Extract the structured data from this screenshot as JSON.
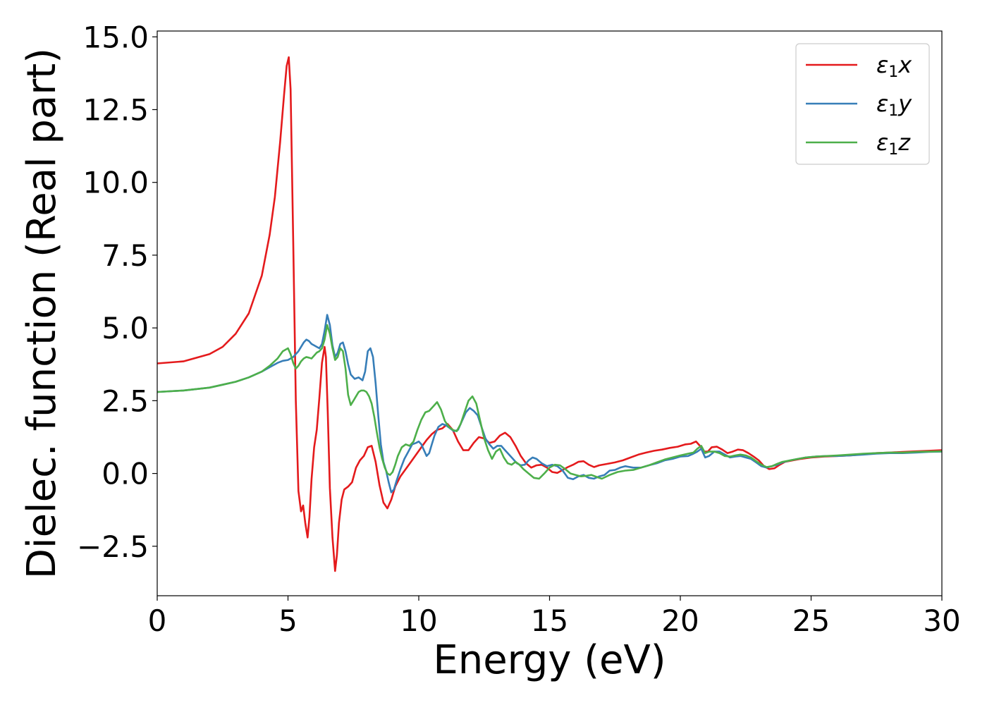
{
  "chart_data": {
    "type": "line",
    "xlabel": "Energy (eV)",
    "ylabel": "Dielec. function (Real part)",
    "xlim": [
      0,
      30
    ],
    "ylim": [
      -4.2,
      15.2
    ],
    "xticks": [
      0,
      5,
      10,
      15,
      20,
      25,
      30
    ],
    "xtick_labels": [
      "0",
      "5",
      "10",
      "15",
      "20",
      "25",
      "30"
    ],
    "yticks": [
      -2.5,
      0.0,
      2.5,
      5.0,
      7.5,
      10.0,
      12.5,
      15.0
    ],
    "ytick_labels": [
      "−2.5",
      "0.0",
      "2.5",
      "5.0",
      "7.5",
      "10.0",
      "12.5",
      "15.0"
    ],
    "grid": false,
    "legend_position": "top-right",
    "series": [
      {
        "name": "ε1x",
        "legend_base": "ε",
        "legend_sub": "1",
        "legend_tail": "x",
        "color": "#e41a1c",
        "x": [
          0,
          1,
          2,
          2.5,
          3,
          3.5,
          4,
          4.3,
          4.5,
          4.7,
          4.85,
          4.95,
          5.03,
          5.1,
          5.2,
          5.3,
          5.4,
          5.5,
          5.58,
          5.66,
          5.75,
          5.82,
          5.9,
          6.0,
          6.1,
          6.2,
          6.3,
          6.4,
          6.45,
          6.52,
          6.6,
          6.7,
          6.8,
          6.87,
          6.95,
          7.05,
          7.15,
          7.3,
          7.45,
          7.6,
          7.75,
          7.9,
          8.05,
          8.2,
          8.35,
          8.5,
          8.65,
          8.8,
          8.95,
          9.1,
          9.3,
          9.5,
          9.7,
          9.9,
          10.1,
          10.3,
          10.5,
          10.7,
          10.9,
          11.1,
          11.3,
          11.5,
          11.7,
          11.9,
          12.1,
          12.3,
          12.5,
          12.7,
          12.9,
          13.1,
          13.3,
          13.5,
          13.7,
          13.9,
          14.1,
          14.3,
          14.5,
          14.7,
          14.9,
          15.1,
          15.3,
          15.5,
          15.7,
          15.9,
          16.1,
          16.3,
          16.5,
          16.7,
          16.9,
          17.2,
          17.5,
          17.8,
          18.1,
          18.4,
          18.7,
          19.0,
          19.3,
          19.6,
          19.9,
          20.2,
          20.4,
          20.6,
          20.75,
          20.9,
          21.05,
          21.2,
          21.4,
          21.6,
          21.8,
          22.0,
          22.2,
          22.4,
          22.6,
          22.8,
          23.0,
          23.2,
          23.4,
          23.6,
          23.8,
          24.0,
          24.3,
          24.6,
          25.0,
          25.5,
          26.0,
          26.5,
          27.0,
          27.5,
          28.0,
          28.5,
          29.0,
          29.5,
          30.0
        ],
        "y": [
          3.78,
          3.85,
          4.1,
          4.35,
          4.8,
          5.5,
          6.8,
          8.2,
          9.5,
          11.4,
          13.0,
          14.0,
          14.3,
          13.2,
          8.0,
          2.5,
          -0.6,
          -1.3,
          -1.1,
          -1.7,
          -2.2,
          -1.5,
          -0.2,
          0.9,
          1.5,
          2.6,
          3.8,
          4.35,
          4.0,
          2.1,
          -0.5,
          -2.2,
          -3.35,
          -2.8,
          -1.7,
          -0.9,
          -0.55,
          -0.45,
          -0.3,
          0.2,
          0.45,
          0.6,
          0.9,
          0.95,
          0.4,
          -0.4,
          -1.0,
          -1.2,
          -0.9,
          -0.45,
          -0.1,
          0.15,
          0.4,
          0.65,
          0.9,
          1.15,
          1.35,
          1.5,
          1.55,
          1.7,
          1.5,
          1.1,
          0.8,
          0.8,
          1.05,
          1.25,
          1.2,
          1.05,
          1.1,
          1.3,
          1.4,
          1.25,
          0.95,
          0.6,
          0.35,
          0.2,
          0.28,
          0.3,
          0.2,
          0.05,
          0.02,
          0.12,
          0.22,
          0.3,
          0.4,
          0.42,
          0.3,
          0.22,
          0.28,
          0.33,
          0.38,
          0.45,
          0.55,
          0.65,
          0.72,
          0.78,
          0.82,
          0.88,
          0.92,
          1.0,
          1.02,
          1.1,
          0.95,
          0.75,
          0.75,
          0.9,
          0.92,
          0.82,
          0.7,
          0.75,
          0.82,
          0.8,
          0.7,
          0.58,
          0.45,
          0.25,
          0.15,
          0.18,
          0.3,
          0.4,
          0.45,
          0.5,
          0.55,
          0.58,
          0.6,
          0.62,
          0.66,
          0.7,
          0.72,
          0.74,
          0.76,
          0.78,
          0.8
        ]
      },
      {
        "name": "ε1y",
        "legend_base": "ε",
        "legend_sub": "1",
        "legend_tail": "y",
        "color": "#377eb8",
        "x": [
          0,
          1,
          2,
          2.5,
          3,
          3.5,
          4,
          4.3,
          4.6,
          4.8,
          5.0,
          5.2,
          5.4,
          5.6,
          5.7,
          5.8,
          5.9,
          6.0,
          6.1,
          6.2,
          6.3,
          6.4,
          6.5,
          6.6,
          6.7,
          6.8,
          6.9,
          7.0,
          7.1,
          7.2,
          7.3,
          7.4,
          7.55,
          7.7,
          7.85,
          7.95,
          8.05,
          8.15,
          8.25,
          8.35,
          8.45,
          8.55,
          8.65,
          8.75,
          8.85,
          8.95,
          9.05,
          9.15,
          9.3,
          9.45,
          9.6,
          9.75,
          9.9,
          10.0,
          10.1,
          10.2,
          10.3,
          10.4,
          10.5,
          10.6,
          10.75,
          10.9,
          11.05,
          11.2,
          11.35,
          11.5,
          11.65,
          11.8,
          11.95,
          12.1,
          12.25,
          12.4,
          12.55,
          12.7,
          12.85,
          13.0,
          13.15,
          13.3,
          13.45,
          13.6,
          13.75,
          13.9,
          14.05,
          14.2,
          14.35,
          14.5,
          14.7,
          14.9,
          15.1,
          15.3,
          15.5,
          15.7,
          15.9,
          16.1,
          16.3,
          16.5,
          16.7,
          16.9,
          17.1,
          17.3,
          17.5,
          17.7,
          17.9,
          18.2,
          18.5,
          18.8,
          19.1,
          19.4,
          19.7,
          20.0,
          20.3,
          20.5,
          20.65,
          20.8,
          20.95,
          21.1,
          21.3,
          21.5,
          21.7,
          21.9,
          22.1,
          22.3,
          22.5,
          22.7,
          22.9,
          23.1,
          23.3,
          23.5,
          23.7,
          23.9,
          24.2,
          24.5,
          24.8,
          25.2,
          25.6,
          26.0,
          26.5,
          27.0,
          27.5,
          28.0,
          28.5,
          29.0,
          29.5,
          30.0
        ],
        "y": [
          2.8,
          2.85,
          2.95,
          3.05,
          3.15,
          3.3,
          3.5,
          3.65,
          3.8,
          3.87,
          3.9,
          4.0,
          4.2,
          4.5,
          4.6,
          4.55,
          4.45,
          4.4,
          4.35,
          4.3,
          4.45,
          4.9,
          5.45,
          5.1,
          4.4,
          4.0,
          4.15,
          4.45,
          4.5,
          4.2,
          3.75,
          3.4,
          3.25,
          3.3,
          3.2,
          3.5,
          4.2,
          4.3,
          4.0,
          3.1,
          2.0,
          1.0,
          0.4,
          0.1,
          -0.3,
          -0.65,
          -0.55,
          -0.25,
          0.15,
          0.5,
          0.75,
          1.0,
          1.05,
          1.1,
          1.0,
          0.8,
          0.6,
          0.7,
          1.0,
          1.3,
          1.6,
          1.7,
          1.65,
          1.55,
          1.45,
          1.5,
          1.8,
          2.1,
          2.25,
          2.15,
          2.0,
          1.6,
          1.2,
          1.0,
          0.85,
          0.95,
          0.95,
          0.8,
          0.65,
          0.5,
          0.35,
          0.28,
          0.3,
          0.45,
          0.55,
          0.5,
          0.35,
          0.25,
          0.3,
          0.25,
          0.1,
          -0.15,
          -0.2,
          -0.1,
          -0.05,
          -0.15,
          -0.18,
          -0.1,
          -0.05,
          0.1,
          0.12,
          0.2,
          0.25,
          0.2,
          0.2,
          0.28,
          0.35,
          0.45,
          0.5,
          0.58,
          0.6,
          0.68,
          0.75,
          0.85,
          0.55,
          0.6,
          0.75,
          0.75,
          0.65,
          0.55,
          0.58,
          0.6,
          0.55,
          0.5,
          0.38,
          0.25,
          0.2,
          0.25,
          0.3,
          0.38,
          0.45,
          0.5,
          0.55,
          0.58,
          0.6,
          0.6,
          0.62,
          0.65,
          0.68,
          0.7,
          0.7,
          0.72,
          0.74,
          0.75
        ]
      },
      {
        "name": "ε1z",
        "legend_base": "ε",
        "legend_sub": "1",
        "legend_tail": "z",
        "color": "#4daf4a",
        "x": [
          0,
          1,
          2,
          2.5,
          3,
          3.5,
          4,
          4.3,
          4.6,
          4.8,
          5.0,
          5.1,
          5.2,
          5.3,
          5.4,
          5.5,
          5.6,
          5.7,
          5.8,
          5.9,
          6.0,
          6.1,
          6.2,
          6.3,
          6.4,
          6.5,
          6.6,
          6.7,
          6.8,
          6.9,
          7.0,
          7.1,
          7.2,
          7.3,
          7.4,
          7.5,
          7.6,
          7.7,
          7.8,
          7.9,
          8.0,
          8.1,
          8.2,
          8.3,
          8.4,
          8.5,
          8.6,
          8.7,
          8.8,
          8.9,
          9.0,
          9.1,
          9.2,
          9.35,
          9.5,
          9.65,
          9.8,
          9.95,
          10.1,
          10.25,
          10.4,
          10.55,
          10.7,
          10.85,
          11.0,
          11.15,
          11.3,
          11.45,
          11.6,
          11.75,
          11.9,
          12.05,
          12.2,
          12.35,
          12.5,
          12.65,
          12.8,
          12.95,
          13.1,
          13.25,
          13.4,
          13.55,
          13.7,
          13.85,
          14.0,
          14.2,
          14.4,
          14.6,
          14.8,
          15.0,
          15.2,
          15.4,
          15.6,
          15.8,
          16.0,
          16.2,
          16.4,
          16.6,
          16.8,
          17.0,
          17.3,
          17.6,
          17.9,
          18.2,
          18.5,
          18.8,
          19.1,
          19.4,
          19.7,
          20.0,
          20.3,
          20.5,
          20.65,
          20.8,
          20.95,
          21.1,
          21.3,
          21.5,
          21.7,
          21.9,
          22.1,
          22.3,
          22.5,
          22.7,
          22.9,
          23.1,
          23.3,
          23.5,
          23.7,
          23.9,
          24.2,
          24.5,
          24.8,
          25.2,
          25.6,
          26.0,
          26.5,
          27.0,
          27.5,
          28.0,
          28.5,
          29.0,
          29.5,
          30.0
        ],
        "y": [
          2.8,
          2.85,
          2.95,
          3.05,
          3.15,
          3.3,
          3.5,
          3.7,
          3.95,
          4.2,
          4.3,
          4.1,
          3.8,
          3.6,
          3.7,
          3.85,
          3.95,
          4.0,
          3.98,
          3.95,
          4.05,
          4.15,
          4.2,
          4.3,
          4.6,
          5.1,
          4.8,
          4.3,
          3.9,
          4.0,
          4.3,
          4.2,
          3.6,
          2.7,
          2.35,
          2.5,
          2.65,
          2.8,
          2.85,
          2.85,
          2.8,
          2.65,
          2.4,
          1.95,
          1.4,
          0.9,
          0.5,
          0.2,
          0.0,
          -0.05,
          0.05,
          0.3,
          0.6,
          0.9,
          1.0,
          0.95,
          1.1,
          1.5,
          1.85,
          2.1,
          2.15,
          2.3,
          2.45,
          2.2,
          1.8,
          1.6,
          1.5,
          1.45,
          1.7,
          2.1,
          2.5,
          2.65,
          2.4,
          1.8,
          1.2,
          0.8,
          0.5,
          0.75,
          0.85,
          0.55,
          0.35,
          0.3,
          0.4,
          0.3,
          0.15,
          0.0,
          -0.15,
          -0.18,
          0.0,
          0.2,
          0.3,
          0.28,
          0.15,
          0.0,
          -0.05,
          -0.1,
          -0.08,
          -0.05,
          -0.12,
          -0.18,
          -0.05,
          0.05,
          0.1,
          0.12,
          0.2,
          0.28,
          0.38,
          0.48,
          0.55,
          0.62,
          0.68,
          0.72,
          0.85,
          0.95,
          0.7,
          0.75,
          0.75,
          0.7,
          0.6,
          0.58,
          0.62,
          0.65,
          0.62,
          0.55,
          0.42,
          0.3,
          0.22,
          0.25,
          0.33,
          0.4,
          0.45,
          0.5,
          0.55,
          0.58,
          0.6,
          0.62,
          0.65,
          0.68,
          0.7,
          0.72,
          0.72,
          0.74,
          0.75,
          0.76
        ]
      }
    ]
  }
}
